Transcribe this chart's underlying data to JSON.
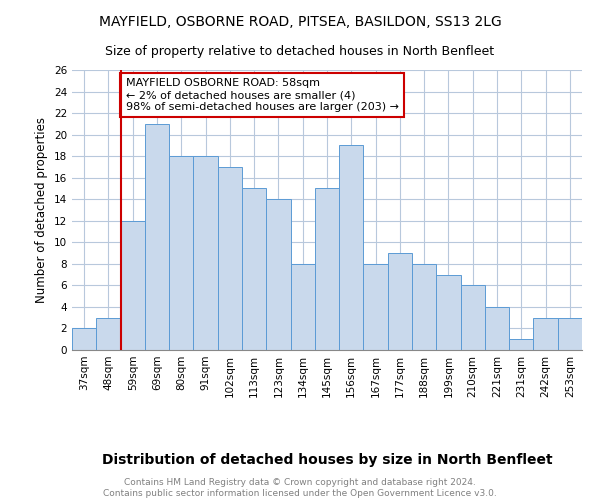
{
  "title1": "MAYFIELD, OSBORNE ROAD, PITSEA, BASILDON, SS13 2LG",
  "title2": "Size of property relative to detached houses in North Benfleet",
  "xlabel": "Distribution of detached houses by size in North Benfleet",
  "ylabel": "Number of detached properties",
  "footnote": "Contains HM Land Registry data © Crown copyright and database right 2024.\nContains public sector information licensed under the Open Government Licence v3.0.",
  "categories": [
    "37sqm",
    "48sqm",
    "59sqm",
    "69sqm",
    "80sqm",
    "91sqm",
    "102sqm",
    "113sqm",
    "123sqm",
    "134sqm",
    "145sqm",
    "156sqm",
    "167sqm",
    "177sqm",
    "188sqm",
    "199sqm",
    "210sqm",
    "221sqm",
    "231sqm",
    "242sqm",
    "253sqm"
  ],
  "values": [
    2,
    3,
    12,
    21,
    18,
    18,
    17,
    15,
    14,
    8,
    15,
    19,
    8,
    9,
    8,
    7,
    6,
    4,
    1,
    3,
    3
  ],
  "bar_color": "#c9d9ec",
  "bar_edge_color": "#5b9bd5",
  "vline_bar_index": 2,
  "annotation_text": "MAYFIELD OSBORNE ROAD: 58sqm\n← 2% of detached houses are smaller (4)\n98% of semi-detached houses are larger (203) →",
  "annotation_box_color": "white",
  "annotation_box_edge_color": "#cc0000",
  "vline_color": "#cc0000",
  "ylim": [
    0,
    26
  ],
  "yticks": [
    0,
    2,
    4,
    6,
    8,
    10,
    12,
    14,
    16,
    18,
    20,
    22,
    24,
    26
  ],
  "grid_color": "#b8c8dc",
  "title1_fontsize": 10,
  "title2_fontsize": 9,
  "xlabel_fontsize": 10,
  "ylabel_fontsize": 8.5,
  "tick_fontsize": 7.5,
  "annot_fontsize": 8,
  "footnote_fontsize": 6.5,
  "footnote_color": "#808080"
}
